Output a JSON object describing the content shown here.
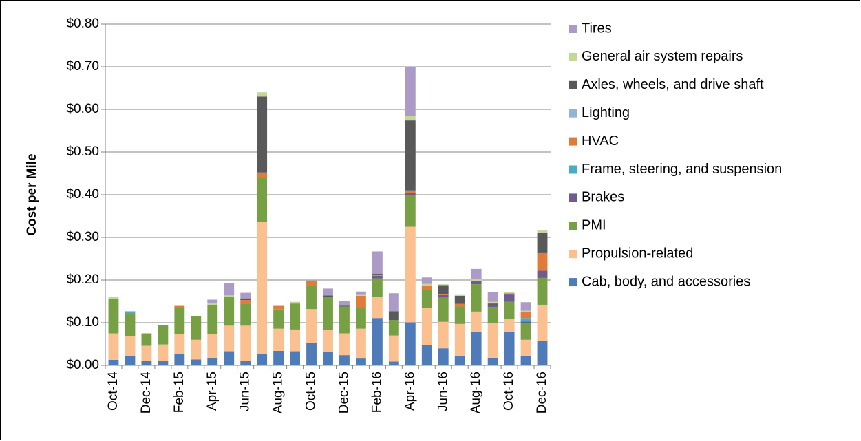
{
  "chart_data": {
    "type": "bar",
    "stacked": true,
    "y_label": "Cost per Mile",
    "categories": [
      "Oct-14",
      null,
      "Dec-14",
      null,
      "Feb-15",
      null,
      "Apr-15",
      null,
      "Jun-15",
      null,
      "Aug-15",
      null,
      "Oct-15",
      null,
      "Dec-15",
      null,
      "Feb-16",
      null,
      "Apr-16",
      null,
      "Jun-16",
      null,
      "Aug-16",
      null,
      "Oct-16",
      null,
      "Dec-16"
    ],
    "ylim": [
      0,
      0.8
    ],
    "yticks": [
      {
        "value": 0,
        "label": "$0.00"
      },
      {
        "value": 0.1,
        "label": "$0.10"
      },
      {
        "value": 0.2,
        "label": "$0.20"
      },
      {
        "value": 0.3,
        "label": "$0.30"
      },
      {
        "value": 0.4,
        "label": "$0.40"
      },
      {
        "value": 0.5,
        "label": "$0.50"
      },
      {
        "value": 0.6,
        "label": "$0.60"
      },
      {
        "value": 0.7,
        "label": "$0.70"
      },
      {
        "value": 0.8,
        "label": "$0.80"
      }
    ],
    "grid": true,
    "legend": "right",
    "series": [
      {
        "name": "Cab, body, and accessories",
        "color": "#4f7cb8",
        "values": [
          0.013,
          0.022,
          0.011,
          0.01,
          0.026,
          0.014,
          0.018,
          0.033,
          0.01,
          0.026,
          0.034,
          0.033,
          0.052,
          0.031,
          0.024,
          0.016,
          0.111,
          0.009,
          0.101,
          0.048,
          0.04,
          0.022,
          0.078,
          0.018,
          0.078,
          0.021,
          0.057
        ]
      },
      {
        "name": "Propulsion-related",
        "color": "#fac090",
        "values": [
          0.062,
          0.046,
          0.035,
          0.039,
          0.048,
          0.046,
          0.055,
          0.06,
          0.083,
          0.31,
          0.052,
          0.051,
          0.08,
          0.052,
          0.051,
          0.07,
          0.05,
          0.061,
          0.224,
          0.087,
          0.062,
          0.075,
          0.048,
          0.082,
          0.031,
          0.039,
          0.085
        ]
      },
      {
        "name": "PMI",
        "color": "#77a044",
        "values": [
          0.08,
          0.053,
          0.029,
          0.045,
          0.063,
          0.056,
          0.068,
          0.068,
          0.052,
          0.104,
          0.045,
          0.06,
          0.055,
          0.078,
          0.063,
          0.048,
          0.043,
          0.036,
          0.075,
          0.041,
          0.057,
          0.041,
          0.064,
          0.037,
          0.04,
          0.04,
          0.063
        ]
      },
      {
        "name": "Brakes",
        "color": "#705b8f",
        "values": [
          0,
          0,
          0,
          0,
          0,
          0,
          0,
          0,
          0,
          0,
          0,
          0,
          0,
          0,
          0,
          0,
          0.006,
          0,
          0.004,
          0,
          0.006,
          0,
          0.008,
          0.005,
          0.017,
          0.003,
          0.017
        ]
      },
      {
        "name": "Frame, steering, and suspension",
        "color": "#4babc4",
        "values": [
          0,
          0.004,
          0,
          0,
          0,
          0,
          0,
          0,
          0,
          0,
          0,
          0,
          0,
          0,
          0,
          0,
          0,
          0,
          0,
          0,
          0,
          0,
          0,
          0,
          0,
          0.008,
          0
        ]
      },
      {
        "name": "HVAC",
        "color": "#e07b39",
        "values": [
          0,
          0,
          0,
          0,
          0.002,
          0,
          0,
          0,
          0.008,
          0.012,
          0.008,
          0.003,
          0.01,
          0,
          0,
          0.029,
          0.003,
          0,
          0.006,
          0.011,
          0.002,
          0.006,
          0,
          0,
          0.003,
          0.014,
          0.041
        ]
      },
      {
        "name": "Lighting",
        "color": "#95b3d7",
        "values": [
          0,
          0.002,
          0,
          0,
          0,
          0,
          0,
          0,
          0,
          0,
          0,
          0,
          0,
          0,
          0,
          0,
          0,
          0,
          0,
          0,
          0,
          0,
          0,
          0,
          0,
          0,
          0
        ]
      },
      {
        "name": "Axles, wheels, and drive shaft",
        "color": "#595959",
        "values": [
          0,
          0,
          0,
          0,
          0,
          0,
          0,
          0,
          0.004,
          0.178,
          0,
          0,
          0,
          0.003,
          0.002,
          0,
          0.002,
          0.021,
          0.164,
          0,
          0.021,
          0.019,
          0,
          0.003,
          0,
          0,
          0.048
        ]
      },
      {
        "name": "General air system repairs",
        "color": "#c3d69b",
        "values": [
          0.006,
          0,
          0,
          0.001,
          0.003,
          0,
          0.004,
          0.003,
          0,
          0.01,
          0.002,
          0.002,
          0.002,
          0,
          0,
          0.002,
          0,
          0,
          0.01,
          0.004,
          0.002,
          0.002,
          0.004,
          0.004,
          0.002,
          0.003,
          0.005
        ]
      },
      {
        "name": "Tires",
        "color": "#ab9bc6",
        "values": [
          0,
          0,
          0,
          0,
          0,
          0,
          0.009,
          0.028,
          0.013,
          0,
          0,
          0,
          0,
          0.016,
          0.011,
          0.008,
          0.052,
          0.042,
          0.117,
          0.015,
          0,
          0,
          0.024,
          0.023,
          0,
          0.02,
          0
        ]
      }
    ]
  }
}
